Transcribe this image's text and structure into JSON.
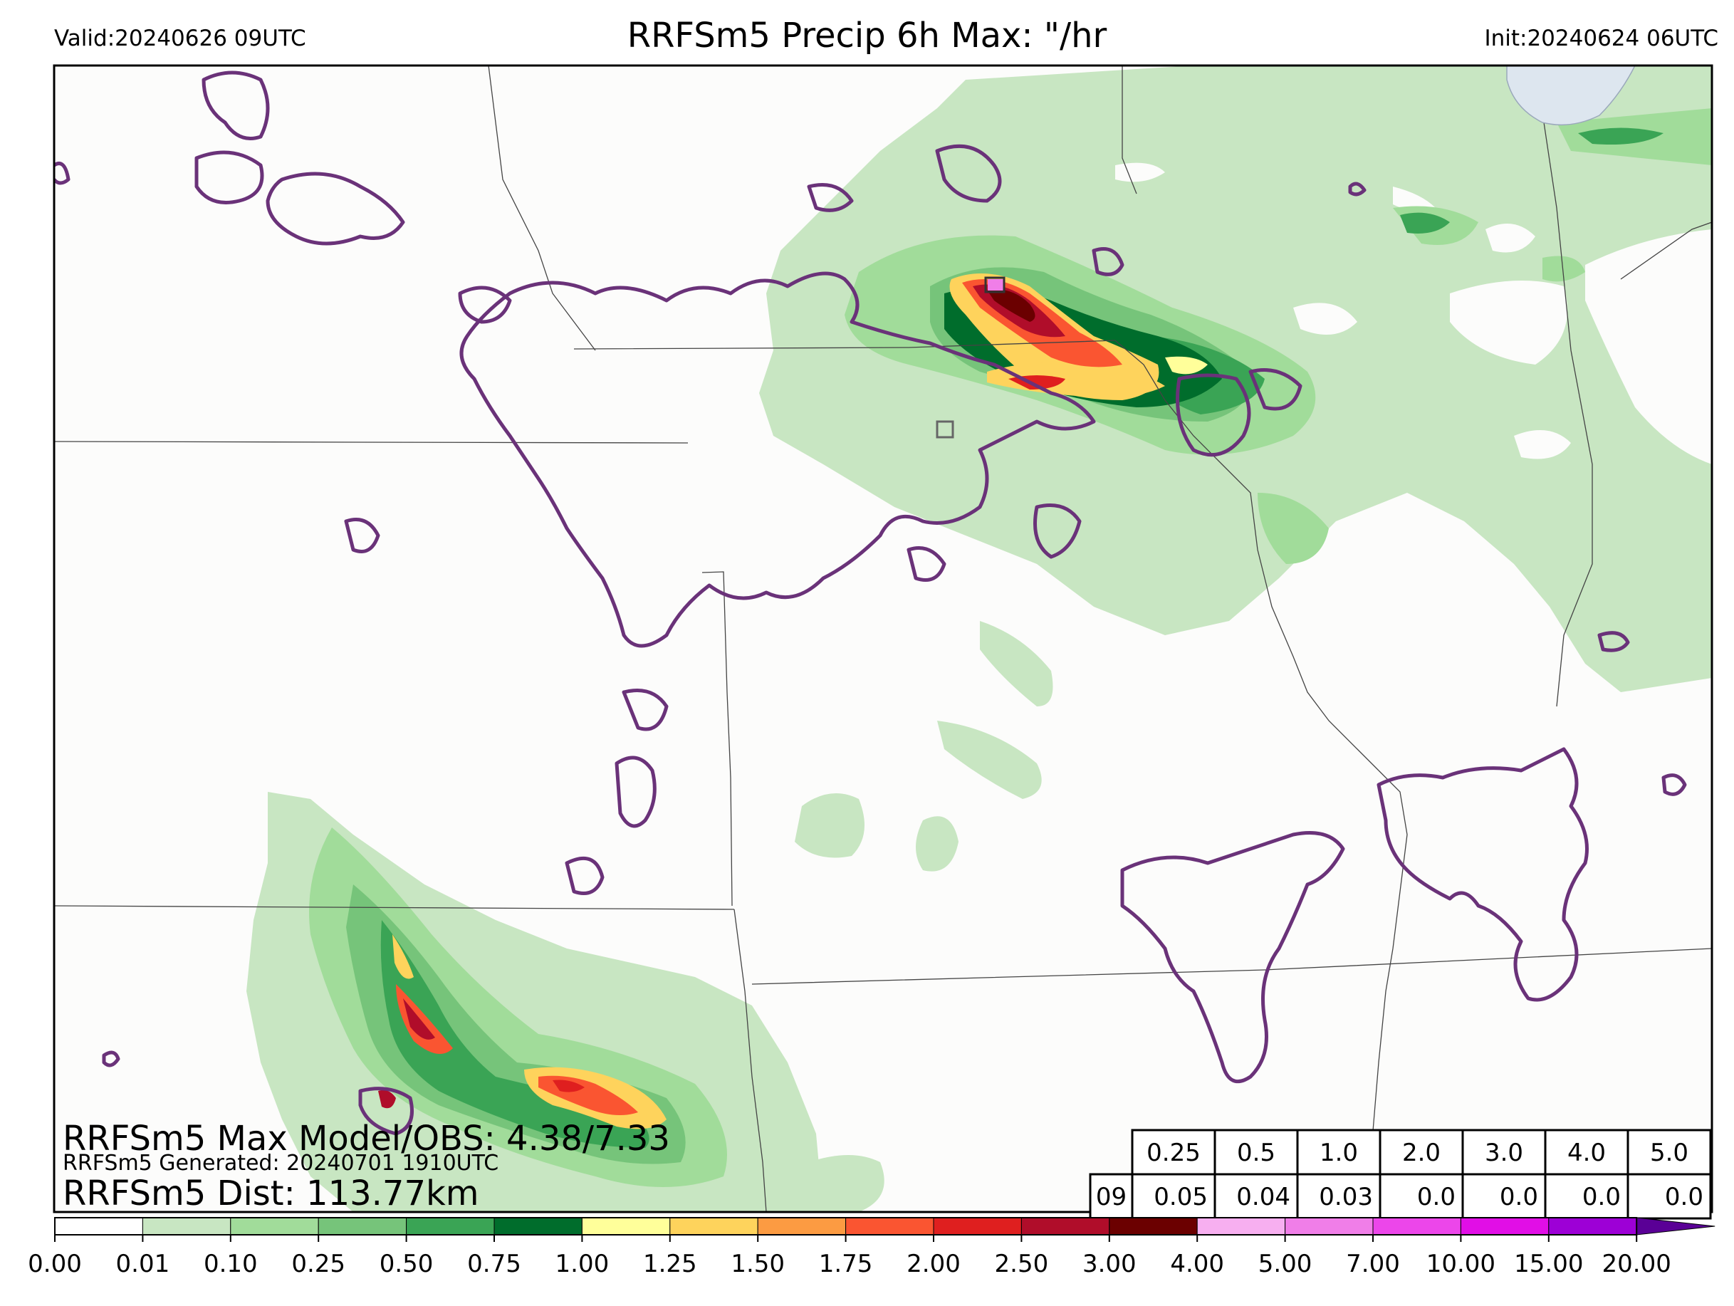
{
  "header": {
    "valid": "Valid:20240626 09UTC",
    "title": "RRFSm5 Precip 6h Max: \"/hr",
    "init": "Init:20240624 06UTC"
  },
  "stats": {
    "max_line": "RRFSm5 Max Model/OBS: 4.38/7.33",
    "generated_line": "RRFSm5 Generated: 20240701 1910UTC",
    "dist_line": "RRFSm5 Dist: 113.77km"
  },
  "threshold_table": {
    "thresholds": [
      "0.25",
      "0.5",
      "1.0",
      "2.0",
      "3.0",
      "4.0",
      "5.0"
    ],
    "hour": "09",
    "values": [
      "0.05",
      "0.04",
      "0.03",
      "0.0",
      "0.0",
      "0.0",
      "0.0"
    ]
  },
  "colorbar": {
    "ticks": [
      "0.00",
      "0.01",
      "0.10",
      "0.25",
      "0.50",
      "0.75",
      "1.00",
      "1.25",
      "1.50",
      "1.75",
      "2.00",
      "2.50",
      "3.00",
      "4.00",
      "5.00",
      "7.00",
      "10.00",
      "15.00",
      "20.00"
    ],
    "colors": [
      "#ffffff",
      "#c8e6c2",
      "#a1dc9a",
      "#76c47a",
      "#3aa455",
      "#006d2c",
      "#ffff9a",
      "#fed35c",
      "#fc9b42",
      "#fa5531",
      "#df1f1f",
      "#b00d2a",
      "#6b0000",
      "#f7aff0",
      "#f07ee8",
      "#ec46ea",
      "#e10ee6",
      "#9d00d6"
    ],
    "extend_color": "#5a0096"
  },
  "map_colors": {
    "background": "#fcfcfb",
    "observed_contour": "#6a3279",
    "boundary_lines": "#444444"
  }
}
